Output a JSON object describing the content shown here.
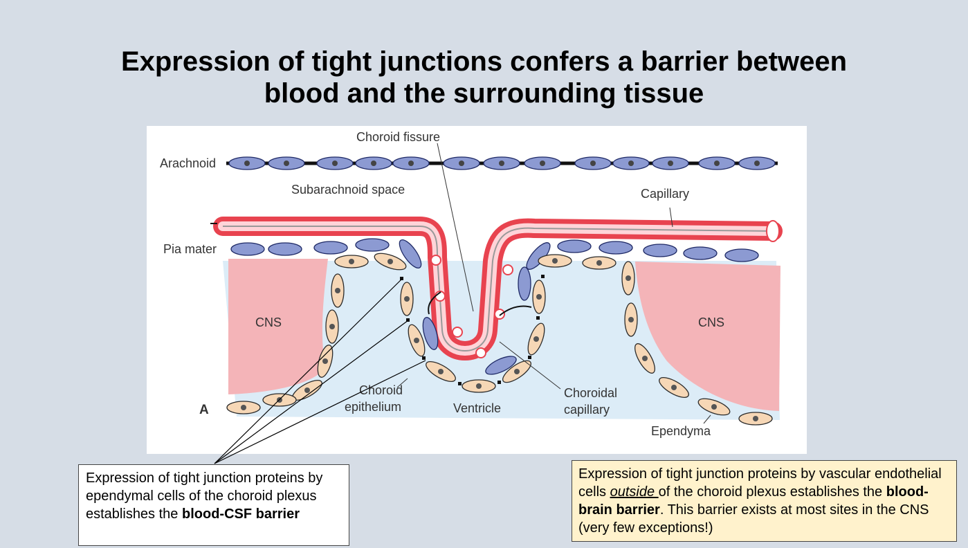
{
  "slide": {
    "title_line1": "Expression of tight junctions confers a barrier between",
    "title_line2": "blood and the surrounding tissue"
  },
  "figure": {
    "panel_letter": "A",
    "labels": {
      "choroid_fissure": "Choroid fissure",
      "arachnoid": "Arachnoid",
      "subarachnoid_space": "Subarachnoid space",
      "capillary": "Capillary",
      "pia_mater": "Pia mater",
      "cns_left": "CNS",
      "cns_right": "CNS",
      "choroid_epithelium_1": "Choroid",
      "choroid_epithelium_2": "epithelium",
      "ventricle": "Ventricle",
      "choroidal_capillary_1": "Choroidal",
      "choroidal_capillary_2": "capillary",
      "ependyma": "Ependyma"
    },
    "colors": {
      "cns": "#f4b4b8",
      "ventricle_fluid": "#dcecf7",
      "capillary_red": "#e8434f",
      "arachnoid_cell": "#8c9ad2",
      "ependymal_cell": "#f6d7b6"
    }
  },
  "callouts": {
    "left": {
      "text_part1": "Expression of tight junction proteins by ependymal cells of the choroid plexus establishes the ",
      "bold": "blood-CSF barrier"
    },
    "right": {
      "text_part1": "Expression of tight junction proteins by vascular endothelial cells ",
      "emphasis": "outside ",
      "text_part2": "of the choroid plexus establishes the ",
      "bold": "blood-brain barrier",
      "text_part3": ". This barrier exists at most sites in the CNS (very few exceptions!)"
    }
  }
}
